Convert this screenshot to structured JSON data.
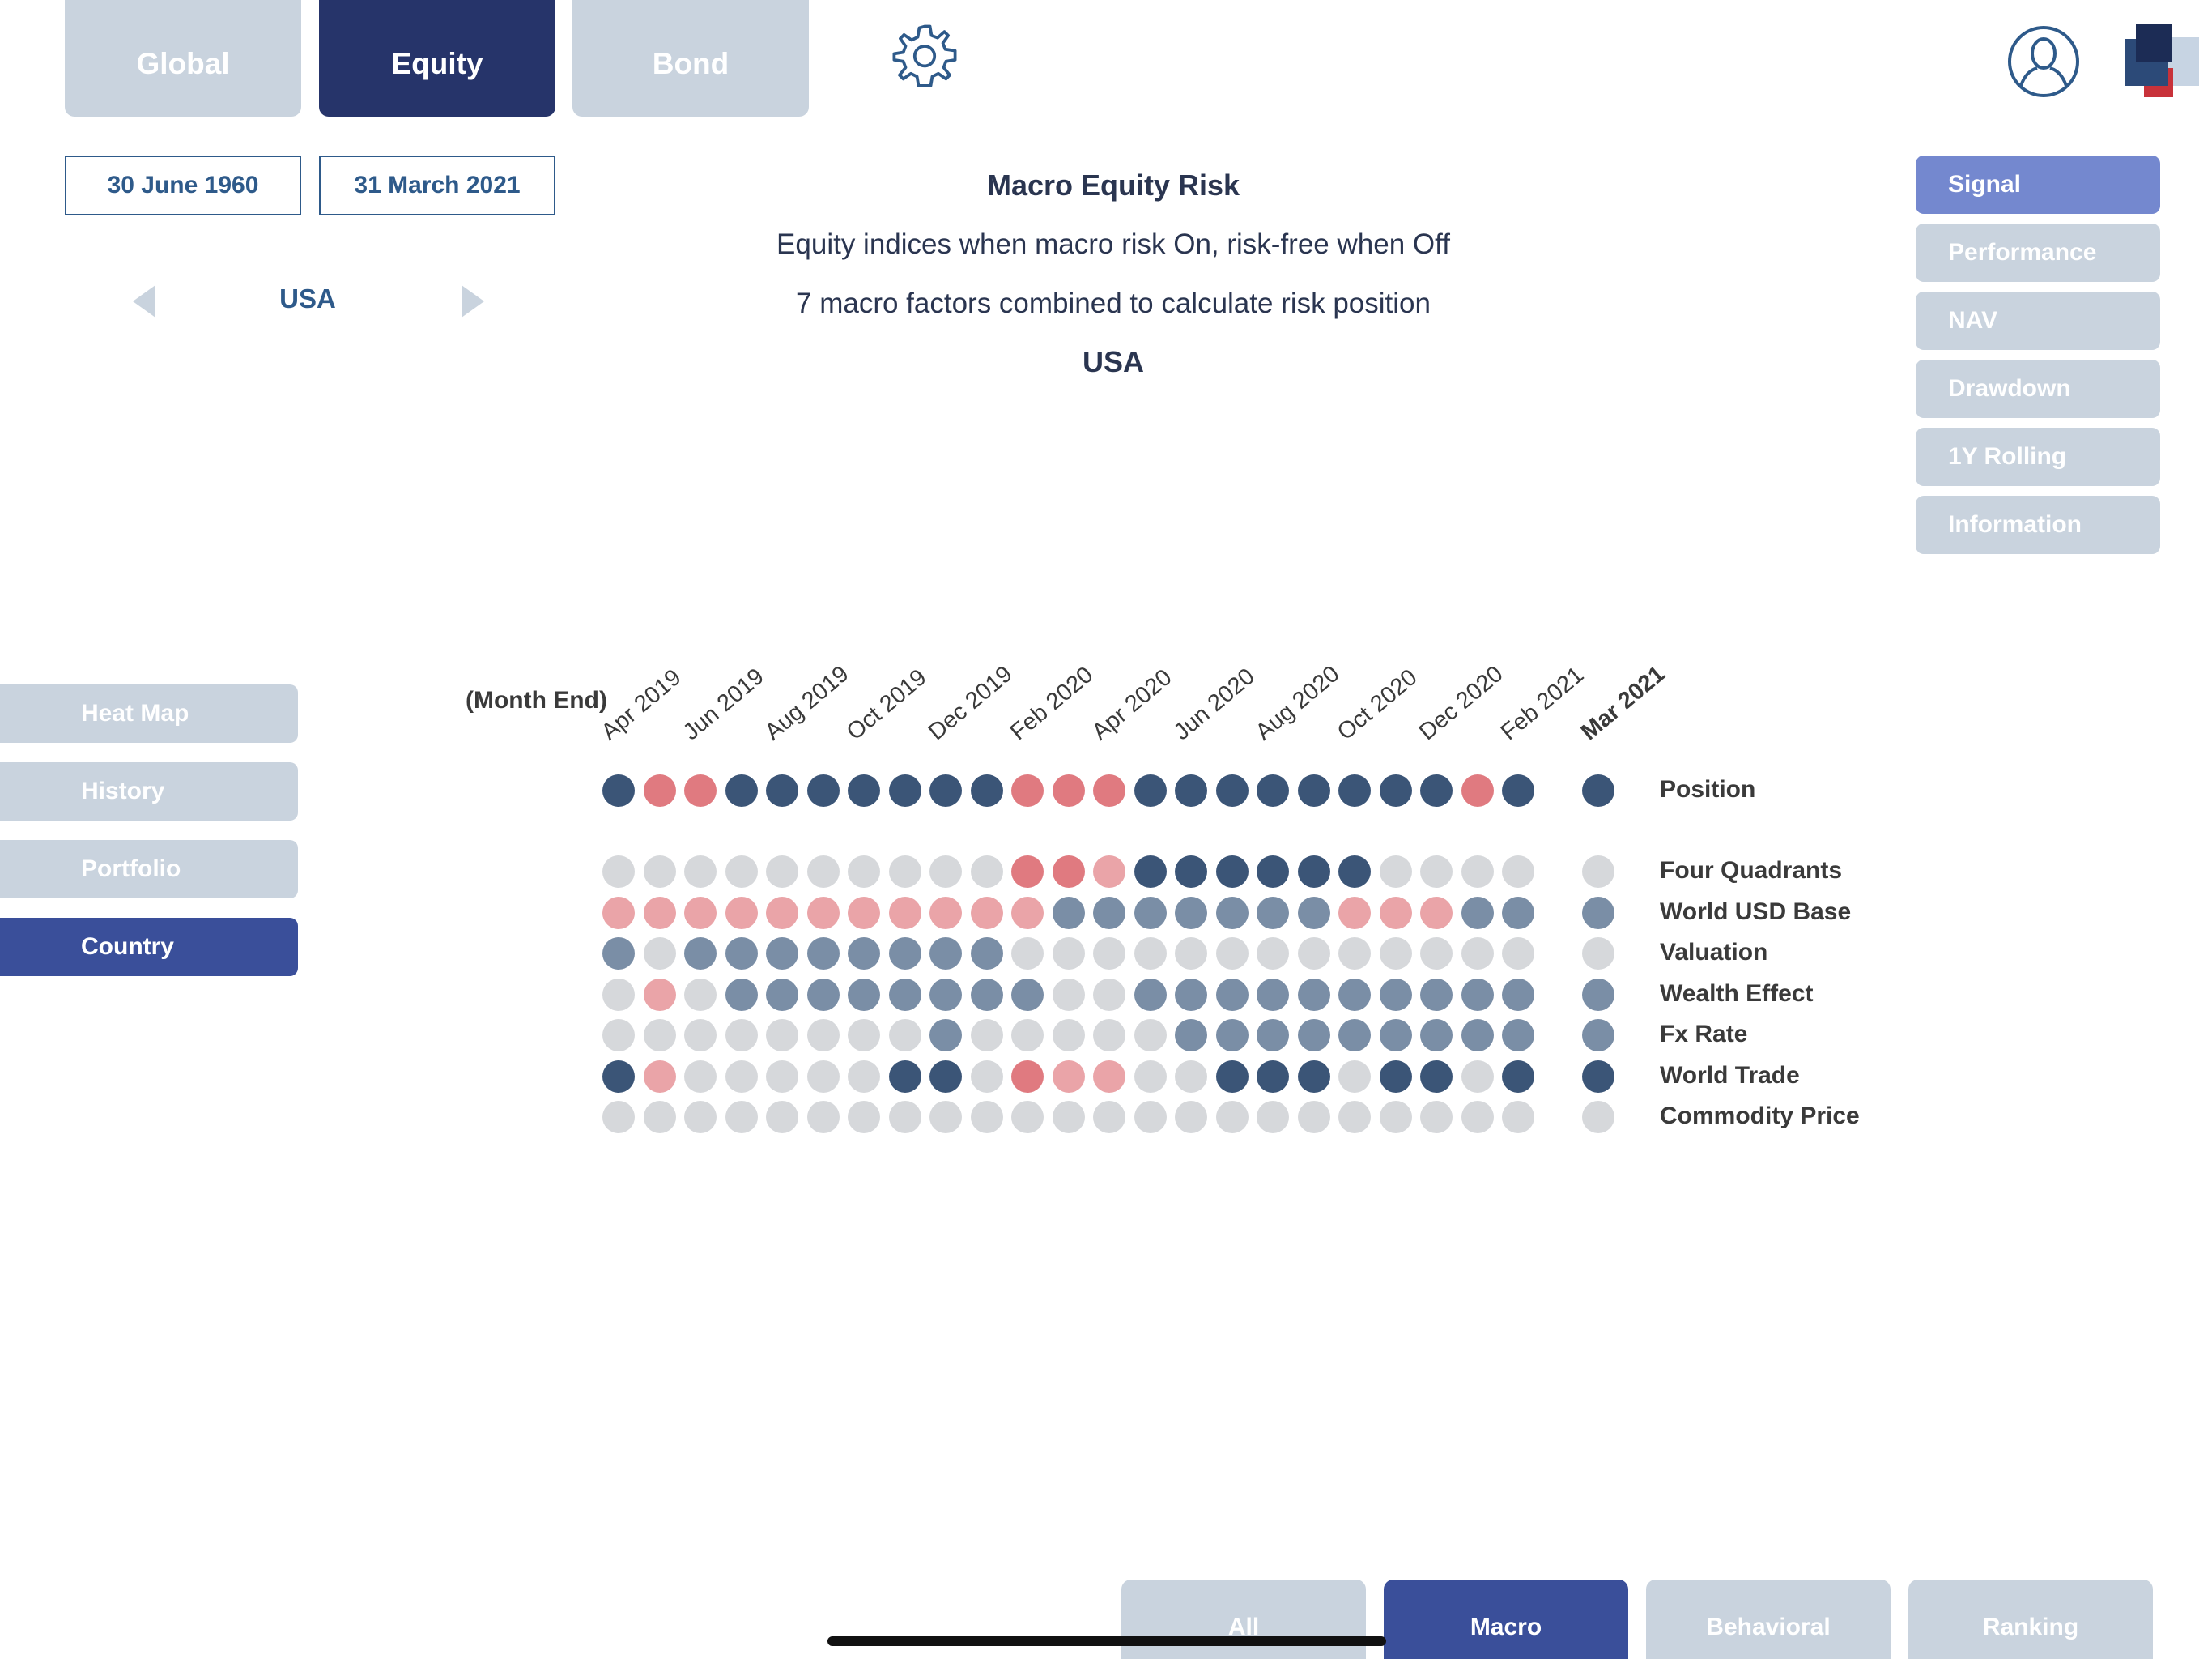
{
  "top_tabs": [
    {
      "label": "Global",
      "active": false
    },
    {
      "label": "Equity",
      "active": true
    },
    {
      "label": "Bond",
      "active": false
    }
  ],
  "dates": {
    "start": "30 June 1960",
    "end": "31 March 2021"
  },
  "country_selector": {
    "value": "USA"
  },
  "header": {
    "title": "Macro Equity Risk",
    "line1": "Equity indices when macro risk On, risk-free when Off",
    "line2": "7 macro factors combined to calculate risk position",
    "country": "USA"
  },
  "right_nav": [
    {
      "label": "Signal",
      "active": true
    },
    {
      "label": "Performance",
      "active": false
    },
    {
      "label": "NAV",
      "active": false
    },
    {
      "label": "Drawdown",
      "active": false
    },
    {
      "label": "1Y Rolling",
      "active": false
    },
    {
      "label": "Information",
      "active": false
    }
  ],
  "left_nav": [
    {
      "label": "Heat Map",
      "active": false
    },
    {
      "label": "History",
      "active": false
    },
    {
      "label": "Portfolio",
      "active": false
    },
    {
      "label": "Country",
      "active": true
    }
  ],
  "bottom_tabs": [
    {
      "label": "All",
      "active": false
    },
    {
      "label": "Macro",
      "active": true
    },
    {
      "label": "Behavioral",
      "active": false
    },
    {
      "label": "Ranking",
      "active": false
    }
  ],
  "colors": {
    "on_strong": "#3b5577",
    "on_weak": "#7a8ea6",
    "neutral": "#d6d8db",
    "off_strong": "#e07a80",
    "off_weak": "#eaa4a8"
  },
  "chart_data": {
    "type": "heatmap",
    "month_end_label": "(Month End)",
    "month_labels": [
      "Apr 2019",
      "Jun 2019",
      "Aug 2019",
      "Oct 2019",
      "Dec 2019",
      "Feb 2020",
      "Apr 2020",
      "Jun 2020",
      "Aug 2020",
      "Oct 2020",
      "Dec 2020",
      "Feb 2021"
    ],
    "current_label": "Mar 2021",
    "legend": "none",
    "rows": [
      {
        "label": "Position",
        "values": [
          "N",
          "R",
          "R",
          "N",
          "N",
          "N",
          "N",
          "N",
          "N",
          "N",
          "R",
          "R",
          "R",
          "N",
          "N",
          "N",
          "N",
          "N",
          "N",
          "N",
          "N",
          "R",
          "N"
        ],
        "current": "N"
      },
      {
        "label": "Four Quadrants",
        "values": [
          "G",
          "G",
          "G",
          "G",
          "G",
          "G",
          "G",
          "G",
          "G",
          "G",
          "R",
          "R",
          "P",
          "N",
          "N",
          "N",
          "N",
          "N",
          "N",
          "G",
          "G",
          "G",
          "G"
        ],
        "current": "G"
      },
      {
        "label": "World USD Base",
        "values": [
          "P",
          "P",
          "P",
          "P",
          "P",
          "P",
          "P",
          "P",
          "P",
          "P",
          "P",
          "S",
          "S",
          "S",
          "S",
          "S",
          "S",
          "S",
          "P",
          "P",
          "P",
          "S",
          "S"
        ],
        "current": "S"
      },
      {
        "label": "Valuation",
        "values": [
          "S",
          "G",
          "S",
          "S",
          "S",
          "S",
          "S",
          "S",
          "S",
          "S",
          "G",
          "G",
          "G",
          "G",
          "G",
          "G",
          "G",
          "G",
          "G",
          "G",
          "G",
          "G",
          "G"
        ],
        "current": "G"
      },
      {
        "label": "Wealth Effect",
        "values": [
          "G",
          "P",
          "G",
          "S",
          "S",
          "S",
          "S",
          "S",
          "S",
          "S",
          "S",
          "G",
          "G",
          "S",
          "S",
          "S",
          "S",
          "S",
          "S",
          "S",
          "S",
          "S",
          "S"
        ],
        "current": "S"
      },
      {
        "label": "Fx Rate",
        "values": [
          "G",
          "G",
          "G",
          "G",
          "G",
          "G",
          "G",
          "G",
          "S",
          "G",
          "G",
          "G",
          "G",
          "G",
          "S",
          "S",
          "S",
          "S",
          "S",
          "S",
          "S",
          "S",
          "S"
        ],
        "current": "S"
      },
      {
        "label": "World Trade",
        "values": [
          "N",
          "P",
          "G",
          "G",
          "G",
          "G",
          "G",
          "N",
          "N",
          "G",
          "R",
          "P",
          "P",
          "G",
          "G",
          "N",
          "N",
          "N",
          "G",
          "N",
          "N",
          "G",
          "N"
        ],
        "current": "N"
      },
      {
        "label": "Commodity Price",
        "values": [
          "G",
          "G",
          "G",
          "G",
          "G",
          "G",
          "G",
          "G",
          "G",
          "G",
          "G",
          "G",
          "G",
          "G",
          "G",
          "G",
          "G",
          "G",
          "G",
          "G",
          "G",
          "G",
          "G"
        ],
        "current": "G"
      }
    ]
  }
}
